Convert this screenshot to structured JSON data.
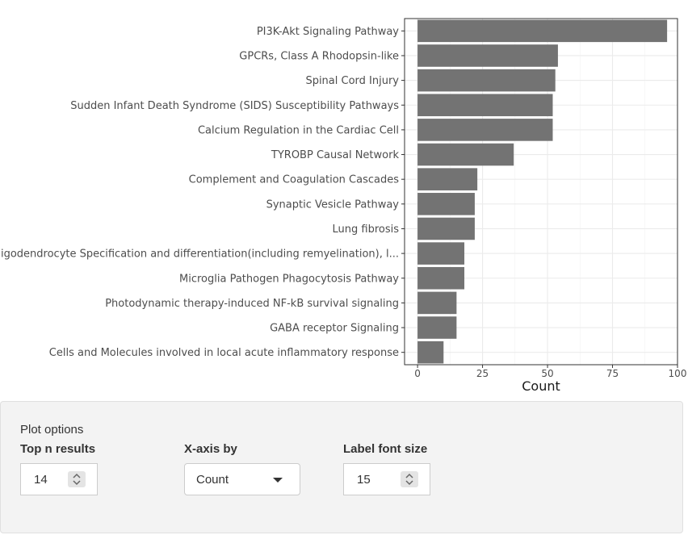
{
  "chart_data": {
    "type": "bar",
    "orientation": "horizontal",
    "categories": [
      "PI3K-Akt Signaling Pathway",
      "GPCRs, Class A Rhodopsin-like",
      "Spinal Cord Injury",
      "Sudden Infant Death Syndrome (SIDS) Susceptibility Pathways",
      "Calcium Regulation in the Cardiac Cell",
      "TYROBP Causal Network",
      "Complement and Coagulation Cascades",
      "Synaptic Vesicle Pathway",
      "Lung fibrosis",
      "Oligodendrocyte Specification and differentiation(including remyelination), l...",
      "Microglia Pathogen Phagocytosis Pathway",
      "Photodynamic therapy-induced NF-kB survival signaling",
      "GABA receptor Signaling",
      "Cells and Molecules involved in local acute inflammatory response"
    ],
    "values": [
      96,
      54,
      53,
      52,
      52,
      37,
      23,
      22,
      22,
      18,
      18,
      15,
      15,
      10
    ],
    "xlabel": "Count",
    "ylabel": "",
    "xlim": [
      -5,
      100
    ],
    "xticks": [
      0,
      25,
      50,
      75,
      100
    ],
    "xtick_labels": [
      "0",
      "25",
      "50",
      "75",
      "100"
    ],
    "bar_color": "#737373",
    "grid": true,
    "theme": "bw"
  },
  "options": {
    "title": "Plot options",
    "top_n": {
      "label": "Top n results",
      "value": "14"
    },
    "x_axis": {
      "label": "X-axis by",
      "value": "Count"
    },
    "font_size": {
      "label": "Label font size",
      "value": "15"
    }
  }
}
